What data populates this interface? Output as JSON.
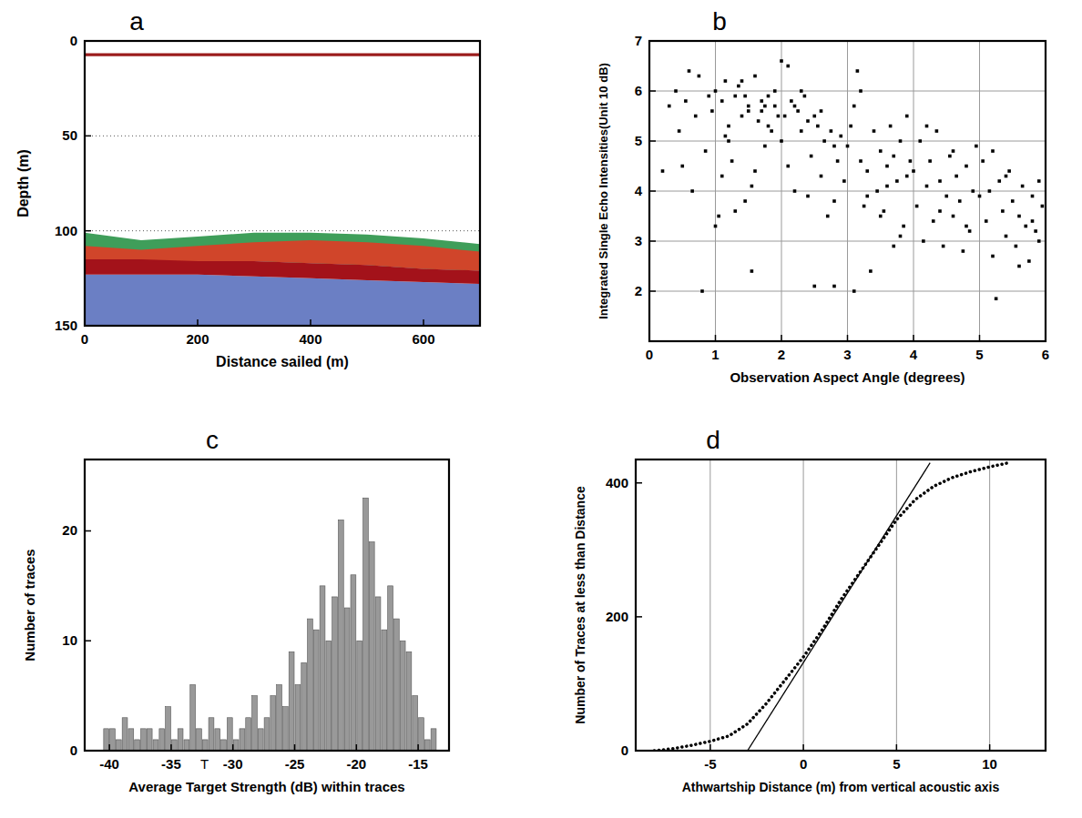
{
  "chart_data": [
    {
      "panel": "a",
      "type": "echogram",
      "x_label": "Distance sailed (m)",
      "y_label": "Depth (m)",
      "xlim": [
        0,
        700
      ],
      "ylim": [
        150,
        0
      ],
      "xticks": [
        0,
        200,
        400,
        600
      ],
      "yticks": [
        0,
        50,
        100,
        150
      ],
      "grid": "y",
      "bands": [
        {
          "color": "#9b1c1c",
          "x": [
            0,
            100,
            200,
            300,
            400,
            500,
            600,
            700
          ],
          "top": [
            6.5,
            6.5,
            6.5,
            6.5,
            6.5,
            6.5,
            6.5,
            6.5
          ],
          "bottom": [
            8,
            8,
            8,
            8,
            8,
            8,
            8,
            8
          ]
        },
        {
          "color": "#6b7fc4",
          "x": [
            0,
            100,
            200,
            300,
            400,
            500,
            600,
            700
          ],
          "top": [
            123,
            123,
            123,
            124,
            125,
            126,
            127,
            128
          ],
          "bottom": [
            150,
            150,
            150,
            150,
            150,
            150,
            150,
            150
          ]
        },
        {
          "color": "#3f9e5a",
          "x": [
            0,
            100,
            200,
            300,
            400,
            500,
            600,
            700
          ],
          "top": [
            101,
            105,
            103,
            101,
            101,
            102,
            104,
            107
          ],
          "bottom": [
            116,
            116,
            116,
            116,
            117,
            118,
            120,
            121
          ]
        },
        {
          "color": "#d0452a",
          "x": [
            0,
            100,
            200,
            300,
            400,
            500,
            600,
            700
          ],
          "top": [
            108,
            110,
            108,
            106,
            105,
            106,
            108,
            111
          ],
          "bottom": [
            116,
            116,
            116,
            116,
            117,
            118,
            120,
            121
          ]
        },
        {
          "color": "#a3121a",
          "x": [
            0,
            100,
            200,
            300,
            400,
            500,
            600,
            700
          ],
          "top": [
            115,
            115,
            116,
            116,
            117,
            118,
            120,
            121
          ],
          "bottom": [
            123,
            123,
            123,
            124,
            125,
            126,
            127,
            128
          ]
        }
      ]
    },
    {
      "panel": "b",
      "type": "scatter",
      "x_label": "Observation Aspect Angle (degrees)",
      "y_label": "Integrated Single Echo Intensities(Unit 10 dB)",
      "xlim": [
        0,
        6
      ],
      "ylim": [
        1,
        7
      ],
      "xticks": [
        0,
        1,
        2,
        3,
        4,
        5,
        6
      ],
      "yticks": [
        2,
        3,
        4,
        5,
        6,
        7
      ],
      "grid": true,
      "color": "#000000",
      "marker": "square",
      "x": [
        0.2,
        0.3,
        0.4,
        0.45,
        0.5,
        0.55,
        0.6,
        0.65,
        0.7,
        0.75,
        0.8,
        0.85,
        0.9,
        0.95,
        1.0,
        1.05,
        1.1,
        1.15,
        1.2,
        1.25,
        1.3,
        1.35,
        1.4,
        1.45,
        1.5,
        1.55,
        1.6,
        1.65,
        1.7,
        1.75,
        1.8,
        1.85,
        1.9,
        1.95,
        1.0,
        1.1,
        1.2,
        1.3,
        1.4,
        1.5,
        1.6,
        1.7,
        1.8,
        1.9,
        1.15,
        1.45,
        1.75,
        1.55,
        2.0,
        2.05,
        2.1,
        2.15,
        2.2,
        2.25,
        2.3,
        2.35,
        2.4,
        2.45,
        2.5,
        2.55,
        2.6,
        2.65,
        2.7,
        2.75,
        2.8,
        2.85,
        2.9,
        2.95,
        2.0,
        2.2,
        2.4,
        2.6,
        2.8,
        2.5,
        2.8,
        2.1,
        2.3,
        3.0,
        3.05,
        3.1,
        3.15,
        3.2,
        3.25,
        3.3,
        3.35,
        3.4,
        3.45,
        3.5,
        3.55,
        3.6,
        3.65,
        3.7,
        3.75,
        3.8,
        3.85,
        3.9,
        3.95,
        3.1,
        3.3,
        3.5,
        3.7,
        3.9,
        3.2,
        3.6,
        3.8,
        4.0,
        4.05,
        4.1,
        4.15,
        4.2,
        4.25,
        4.3,
        4.35,
        4.4,
        4.45,
        4.5,
        4.55,
        4.6,
        4.65,
        4.7,
        4.75,
        4.8,
        4.85,
        4.9,
        4.95,
        4.2,
        4.4,
        4.6,
        4.8,
        5.0,
        5.05,
        5.1,
        5.15,
        5.2,
        5.25,
        5.3,
        5.35,
        5.4,
        5.45,
        5.5,
        5.55,
        5.6,
        5.65,
        5.7,
        5.75,
        5.8,
        5.85,
        5.9,
        5.95,
        5.2,
        5.4,
        5.6,
        5.8,
        5.9
      ],
      "values": [
        4.4,
        5.7,
        6.0,
        5.2,
        4.5,
        5.8,
        6.4,
        4.0,
        5.5,
        6.3,
        2.0,
        4.8,
        5.9,
        5.6,
        6.0,
        3.5,
        5.8,
        6.2,
        5.3,
        4.6,
        5.9,
        6.1,
        5.5,
        3.8,
        5.7,
        2.4,
        6.3,
        5.4,
        5.6,
        4.9,
        5.9,
        5.2,
        5.7,
        5.5,
        3.3,
        4.3,
        5.0,
        3.6,
        6.2,
        5.6,
        4.4,
        5.8,
        5.3,
        6.0,
        5.1,
        5.9,
        5.7,
        4.1,
        6.6,
        5.5,
        6.5,
        5.8,
        4.0,
        5.6,
        5.2,
        5.9,
        5.4,
        4.7,
        2.1,
        5.3,
        4.3,
        5.0,
        3.5,
        5.2,
        2.1,
        4.6,
        5.1,
        4.2,
        5.0,
        5.7,
        3.9,
        5.6,
        4.9,
        5.5,
        3.8,
        4.5,
        6.0,
        4.9,
        5.3,
        2.0,
        6.4,
        4.6,
        3.7,
        4.4,
        2.4,
        5.2,
        4.0,
        4.8,
        3.6,
        4.5,
        5.3,
        2.9,
        4.2,
        5.0,
        3.3,
        4.3,
        4.6,
        5.7,
        3.9,
        3.5,
        4.7,
        5.5,
        6.0,
        4.1,
        3.1,
        4.4,
        3.7,
        5.0,
        3.0,
        4.1,
        4.6,
        3.4,
        5.2,
        4.2,
        2.9,
        3.9,
        4.7,
        3.5,
        4.3,
        3.8,
        2.8,
        4.5,
        3.2,
        4.0,
        4.9,
        5.3,
        3.6,
        4.8,
        3.3,
        3.9,
        4.6,
        3.4,
        4.0,
        2.7,
        1.85,
        4.2,
        3.6,
        3.1,
        4.4,
        3.8,
        2.9,
        3.5,
        4.1,
        3.3,
        2.6,
        3.9,
        3.2,
        3.0,
        3.7,
        4.8,
        4.3,
        2.5,
        3.4,
        4.2
      ]
    },
    {
      "panel": "c",
      "type": "histogram",
      "x_label": "Average Target Strength (dB) within traces",
      "y_label": "Number of traces",
      "xlim": [
        -42,
        -12.5
      ],
      "ylim": [
        0,
        26.5
      ],
      "xticks": [
        -40,
        -35,
        -30,
        -25,
        -20,
        -15
      ],
      "yticks": [
        0,
        10,
        20
      ],
      "color": "#999999",
      "bins": [
        -40.5,
        -40,
        -39.5,
        -39,
        -38.5,
        -38,
        -37.5,
        -37,
        -36.5,
        -36,
        -35.5,
        -35,
        -34.5,
        -34,
        -33.5,
        -33,
        -32.5,
        -32,
        -31.5,
        -31,
        -30.5,
        -30,
        -29.5,
        -29,
        -28.5,
        -28,
        -27.5,
        -27,
        -26.5,
        -26,
        -25.5,
        -25,
        -24.5,
        -24,
        -23.5,
        -23,
        -22.5,
        -22,
        -21.5,
        -21,
        -20.5,
        -20,
        -19.5,
        -19,
        -18.5,
        -18,
        -17.5,
        -17,
        -16.5,
        -16,
        -15.5,
        -15,
        -14.5,
        -14,
        -13.5
      ],
      "values": [
        2,
        2,
        1,
        3,
        2,
        1,
        2,
        2,
        1,
        2,
        4,
        1,
        2,
        1,
        6,
        2,
        1,
        3,
        2,
        1,
        3,
        1,
        2,
        3,
        5,
        2,
        3,
        5,
        6,
        4,
        9,
        6,
        8,
        12,
        11,
        15,
        10,
        14,
        21,
        13,
        16,
        10,
        23,
        19,
        14,
        11,
        15,
        12,
        10,
        9,
        5,
        3,
        1,
        2
      ],
      "annotations": [
        {
          "x": -32.3,
          "text": "T"
        }
      ]
    },
    {
      "panel": "d",
      "type": "line",
      "x_label": "Athwartship Distance (m) from vertical acoustic axis",
      "y_label": "Number of Traces at less than Distance",
      "xlim": [
        -9,
        13
      ],
      "ylim": [
        0,
        435
      ],
      "xticks": [
        -5,
        0,
        5,
        10
      ],
      "yticks": [
        0,
        200,
        400
      ],
      "grid": "x",
      "series": [
        {
          "color": "#000000",
          "line_style": "dotted",
          "x": [
            -8,
            -7,
            -6,
            -5,
            -4,
            -3,
            -2,
            -1,
            0,
            1,
            2,
            3,
            4,
            5,
            6,
            7,
            8,
            9,
            10,
            11
          ],
          "values": [
            0,
            3,
            8,
            14,
            22,
            40,
            70,
            105,
            140,
            180,
            225,
            265,
            305,
            345,
            375,
            395,
            408,
            417,
            424,
            430
          ]
        },
        {
          "color": "#000000",
          "line_style": "solid",
          "x": [
            -3,
            6.8
          ],
          "values": [
            0,
            430
          ]
        }
      ]
    }
  ]
}
